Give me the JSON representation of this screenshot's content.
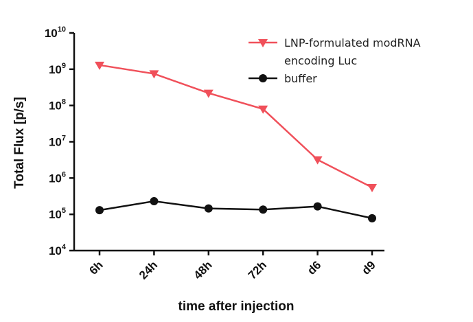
{
  "chart_data": {
    "type": "line",
    "title": "",
    "xlabel": "time after injection",
    "ylabel": "Total Flux [p/s]",
    "y_scale": "log",
    "ylim": [
      10000,
      10000000000
    ],
    "y_ticks": [
      {
        "value": 10000,
        "base": "10",
        "exp": "4"
      },
      {
        "value": 100000,
        "base": "10",
        "exp": "5"
      },
      {
        "value": 1000000,
        "base": "10",
        "exp": "6"
      },
      {
        "value": 10000000,
        "base": "10",
        "exp": "7"
      },
      {
        "value": 100000000,
        "base": "10",
        "exp": "8"
      },
      {
        "value": 1000000000,
        "base": "10",
        "exp": "9"
      },
      {
        "value": 10000000000,
        "base": "10",
        "exp": "10"
      }
    ],
    "categories": [
      "6h",
      "24h",
      "48h",
      "72h",
      "d6",
      "d9"
    ],
    "series": [
      {
        "name": "LNP-formulated modRNA encoding Luc",
        "legend_lines": [
          "LNP-formulated modRNA",
          "encoding Luc"
        ],
        "color": "#f0505a",
        "marker": "triangle-down",
        "values": [
          1300000000,
          750000000,
          220000000,
          80000000,
          3200000,
          550000
        ]
      },
      {
        "name": "buffer",
        "legend_lines": [
          "buffer"
        ],
        "color": "#111111",
        "marker": "circle",
        "values": [
          130000,
          230000,
          145000,
          135000,
          165000,
          78000
        ]
      }
    ],
    "legend_position": "top-right"
  }
}
